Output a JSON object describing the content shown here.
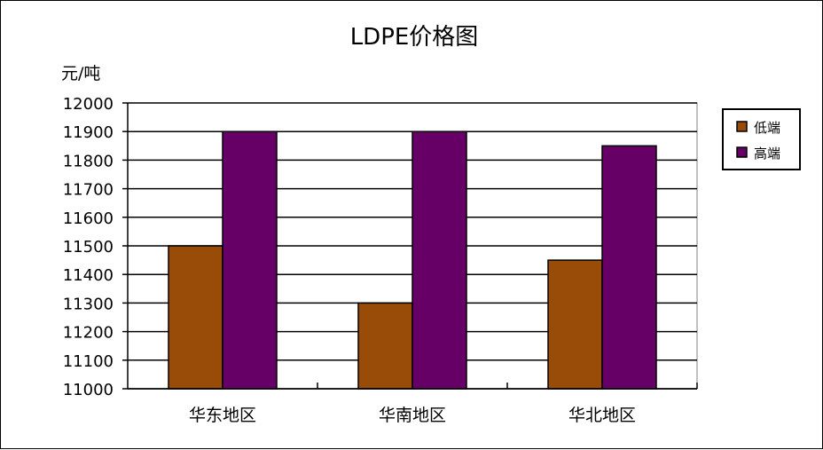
{
  "chart_data": {
    "type": "bar",
    "title": "LDPE价格图",
    "ylabel": "元/吨",
    "xlabel": "",
    "categories": [
      "华东地区",
      "华南地区",
      "华北地区"
    ],
    "series": [
      {
        "name": "低端",
        "values": [
          11500,
          11300,
          11450
        ],
        "color": "#994C07"
      },
      {
        "name": "高端",
        "values": [
          11900,
          11900,
          11850
        ],
        "color": "#660066"
      }
    ],
    "ylim": [
      11000,
      12000
    ],
    "yticks": [
      11000,
      11100,
      11200,
      11300,
      11400,
      11500,
      11600,
      11700,
      11800,
      11900,
      12000
    ],
    "grid": true,
    "legend": "right"
  }
}
